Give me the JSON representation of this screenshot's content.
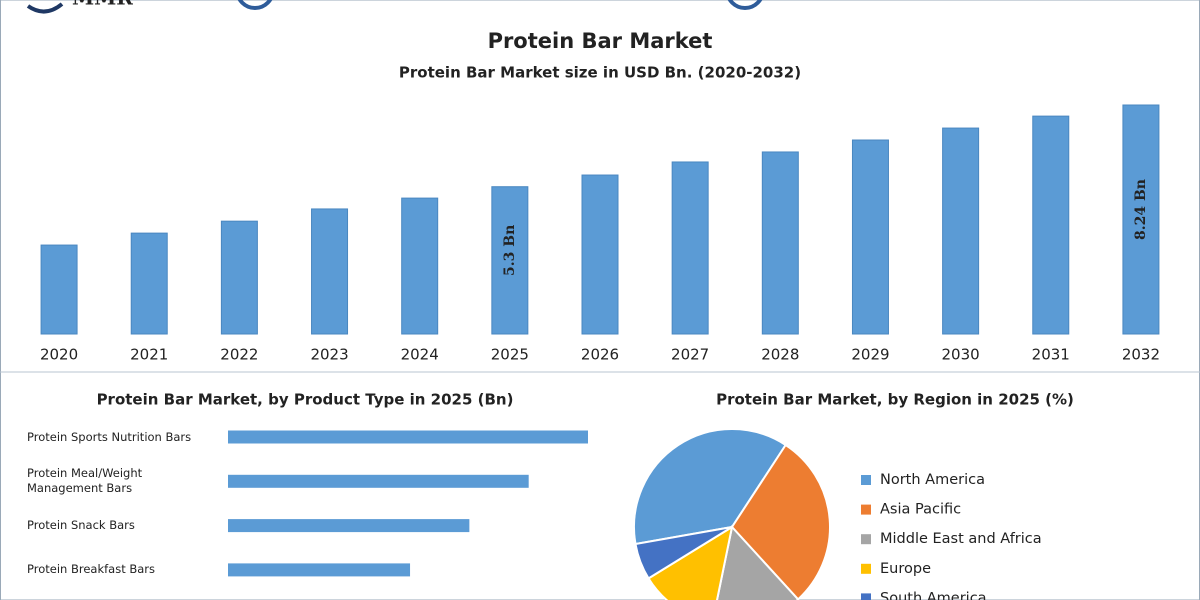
{
  "logo": "MMR",
  "chart_data": [
    {
      "type": "bar",
      "title": "Protein Bar Market",
      "subtitle": "Protein Bar Market size in USD Bn. (2020-2032)",
      "categories": [
        "2020",
        "2021",
        "2022",
        "2023",
        "2024",
        "2025",
        "2026",
        "2027",
        "2028",
        "2029",
        "2030",
        "2031",
        "2032"
      ],
      "values": [
        3.2,
        3.63,
        4.06,
        4.5,
        4.89,
        5.3,
        5.72,
        6.19,
        6.55,
        6.98,
        7.41,
        7.84,
        8.24
      ],
      "value_labels": [
        null,
        null,
        null,
        null,
        null,
        "5.3 Bn",
        null,
        null,
        null,
        null,
        null,
        null,
        "8.24 Bn"
      ],
      "color": "#5b9bd5"
    },
    {
      "type": "hbar",
      "title": "Protein Bar Market, by Product Type in 2025 (Bn)",
      "categories": [
        "Protein Sports Nutrition Bars",
        "Protein Meal/Weight Management Bars",
        "Protein Snack Bars",
        "Protein Breakfast Bars"
      ],
      "values": [
        1.76,
        1.47,
        1.18,
        0.89
      ],
      "color": "#5b9bd5"
    },
    {
      "type": "pie",
      "title": "Protein Bar Market, by Region in 2025 (%)",
      "categories": [
        "North America",
        "Asia Pacific",
        "Middle East and Africa",
        "Europe",
        "South America"
      ],
      "values": [
        37,
        29,
        15,
        13,
        6
      ],
      "colors": [
        "#5b9bd5",
        "#ed7d31",
        "#a5a5a5",
        "#ffc000",
        "#4472c4"
      ]
    }
  ]
}
